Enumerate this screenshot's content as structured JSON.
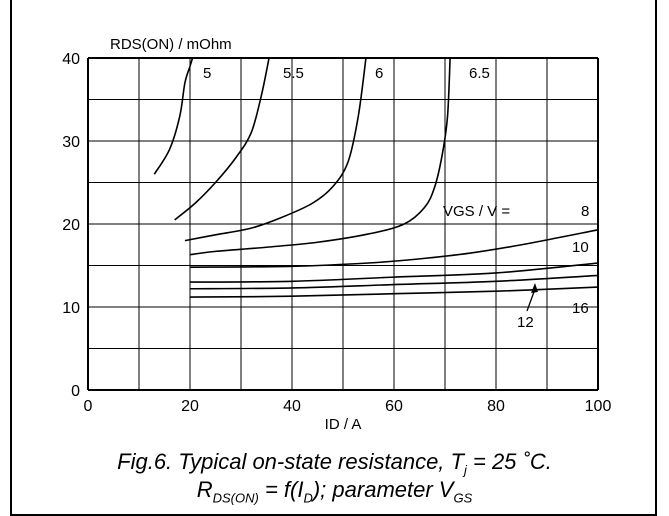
{
  "chart_data": {
    "type": "line",
    "ylabel": "RDS(ON) / mOhm",
    "xlabel": "ID / A",
    "xlim": [
      0,
      100
    ],
    "ylim": [
      0,
      40
    ],
    "xticks": [
      "0",
      "20",
      "40",
      "60",
      "80",
      "100"
    ],
    "yticks": [
      "0",
      "10",
      "20",
      "30",
      "40"
    ],
    "grid": true,
    "legend_label": "VGS / V =",
    "series": [
      {
        "name": "5",
        "x": [
          13,
          16,
          18,
          19,
          20,
          20.5
        ],
        "y": [
          26,
          29,
          33,
          37,
          39,
          40
        ]
      },
      {
        "name": "5.5",
        "x": [
          17,
          21,
          25,
          29,
          32,
          34,
          35.5
        ],
        "y": [
          20.5,
          22.5,
          25,
          28,
          31,
          35.5,
          40
        ]
      },
      {
        "name": "6",
        "x": [
          19,
          25,
          32,
          38,
          44,
          48,
          51,
          53,
          54.5
        ],
        "y": [
          18,
          18.7,
          19.5,
          20.8,
          22.5,
          24.5,
          27.5,
          33,
          40
        ]
      },
      {
        "name": "6.5",
        "x": [
          20,
          25,
          35,
          45,
          55,
          62,
          66,
          68,
          69.5,
          70.5,
          71
        ],
        "y": [
          16.3,
          16.7,
          17.2,
          17.8,
          18.8,
          20,
          22,
          24.5,
          28.5,
          33,
          40
        ]
      },
      {
        "name": "8",
        "x": [
          20,
          40,
          55,
          65,
          75,
          85,
          100
        ],
        "y": [
          14.8,
          14.9,
          15.3,
          15.8,
          16.5,
          17.5,
          19.3
        ]
      },
      {
        "name": "10",
        "x": [
          20,
          40,
          60,
          80,
          100
        ],
        "y": [
          13.0,
          13.1,
          13.6,
          14.1,
          15.3
        ]
      },
      {
        "name": "12",
        "x": [
          20,
          40,
          60,
          80,
          100
        ],
        "y": [
          12.2,
          12.3,
          12.7,
          13.1,
          13.8
        ]
      },
      {
        "name": "16",
        "x": [
          20,
          40,
          60,
          80,
          100
        ],
        "y": [
          11.2,
          11.3,
          11.6,
          11.9,
          12.4
        ]
      }
    ],
    "caption_line1": "Fig.6.   Typical on-state resistance, T",
    "caption_line1_sub": "j",
    "caption_line1_rest": " = 25 ˚C.",
    "caption_line2_a": "R",
    "caption_line2_a_sub": "DS(ON)",
    "caption_line2_b": " = f(I",
    "caption_line2_b_sub": "D",
    "caption_line2_c": "); parameter V",
    "caption_line2_c_sub": "GS"
  }
}
